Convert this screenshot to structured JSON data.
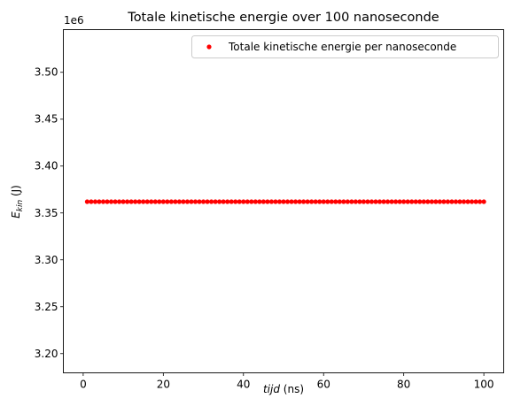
{
  "chart_data": {
    "type": "scatter",
    "title": "Totale kinetische energie over 100 nanoseconde",
    "xlabel": {
      "italic": "tijd",
      "rest": " (ns)"
    },
    "ylabel": {
      "base": "E",
      "sub": "kin",
      "rest": " (J)"
    },
    "offset_label": "1e6",
    "xlim": [
      -4.95,
      104.95
    ],
    "ylim": [
      3.1795,
      3.5455
    ],
    "xticks": [
      0,
      20,
      40,
      60,
      80,
      100
    ],
    "xtick_labels": [
      "0",
      "20",
      "40",
      "60",
      "80",
      "100"
    ],
    "yticks": [
      3.2,
      3.25,
      3.3,
      3.35,
      3.4,
      3.45,
      3.5
    ],
    "ytick_labels": [
      "3.20",
      "3.25",
      "3.30",
      "3.35",
      "3.40",
      "3.45",
      "3.50"
    ],
    "grid": false,
    "legend_position": "top-right",
    "series": [
      {
        "name": "Totale kinetische energie per nanoseconde",
        "color": "#ff0000",
        "marker": "point",
        "x_start": 1,
        "x_end": 100,
        "x_step": 1,
        "y_constant": 3.362
      }
    ]
  }
}
